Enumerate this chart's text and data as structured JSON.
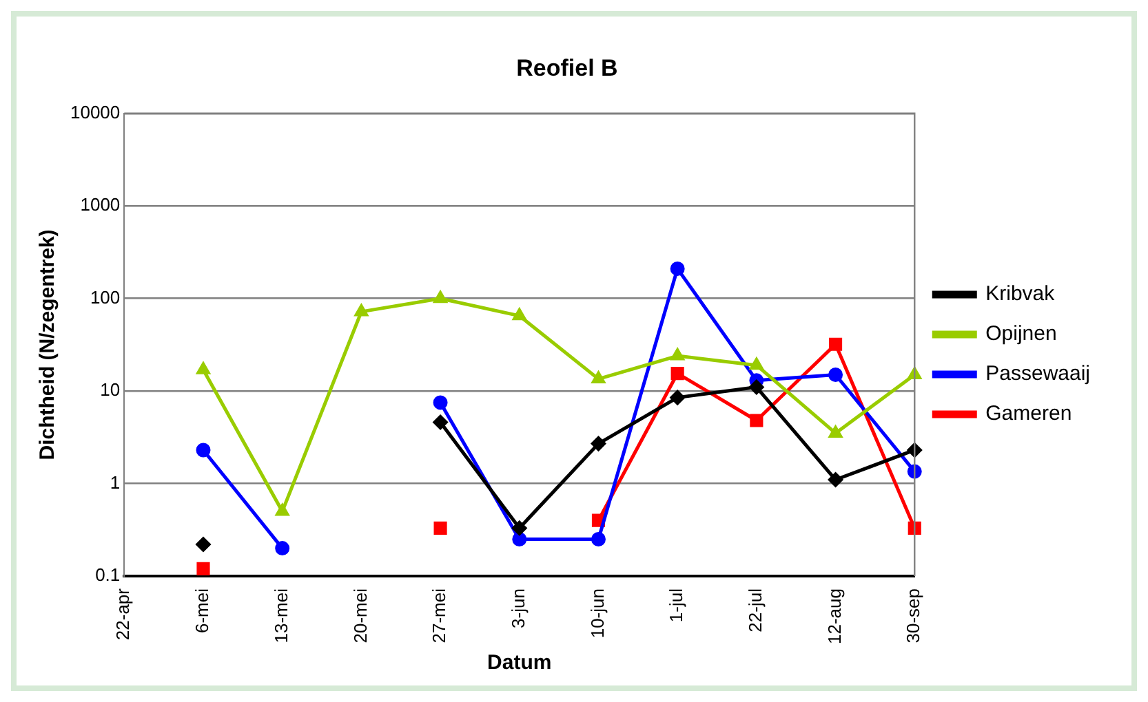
{
  "chart_data": {
    "type": "line",
    "title": "Reofiel B",
    "xlabel": "Datum",
    "ylabel": "Dichtheid (N/zegentrek)",
    "categories": [
      "22-apr",
      "6-mei",
      "13-mei",
      "20-mei",
      "27-mei",
      "3-jun",
      "10-jun",
      "1-jul",
      "22-jul",
      "12-aug",
      "30-sep"
    ],
    "log": true,
    "ylim": [
      0.1,
      10000
    ],
    "yticks": [
      0.1,
      1,
      10,
      100,
      1000,
      10000
    ],
    "grid": "y",
    "legend": "right",
    "line_style": "solid",
    "series": [
      {
        "name": "Kribvak",
        "color": "#000000",
        "marker": "diamond",
        "values": [
          null,
          0.22,
          null,
          null,
          4.6,
          0.33,
          2.7,
          8.5,
          11,
          1.1,
          2.3
        ]
      },
      {
        "name": "Opijnen",
        "color": "#99cc00",
        "marker": "triangle",
        "values": [
          null,
          17,
          0.5,
          72,
          100,
          65,
          13.5,
          24,
          19,
          3.5,
          15
        ]
      },
      {
        "name": "Passewaaij",
        "color": "#0000ff",
        "marker": "circle",
        "values": [
          null,
          2.3,
          0.2,
          null,
          7.5,
          0.25,
          0.25,
          210,
          13,
          15,
          1.35
        ]
      },
      {
        "name": "Gameren",
        "color": "#ff0000",
        "marker": "square",
        "values": [
          null,
          0.12,
          null,
          null,
          0.33,
          null,
          0.4,
          15.5,
          4.8,
          32,
          0.33
        ]
      }
    ]
  }
}
